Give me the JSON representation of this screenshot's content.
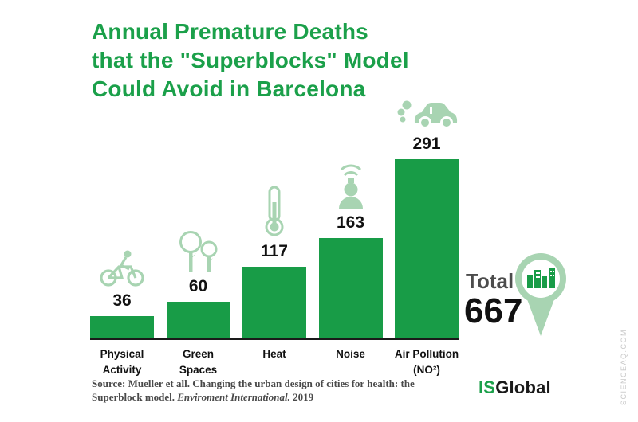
{
  "title": {
    "lines": [
      "Annual Premature Deaths",
      "that the \"Superblocks\" Model",
      "Could Avoid in Barcelona"
    ]
  },
  "chart_data": {
    "type": "bar",
    "title": "Annual Premature Deaths that the \"Superblocks\" Model Could Avoid in Barcelona",
    "categories": [
      "Physical Activity",
      "Green\nSpaces",
      "Heat",
      "Noise",
      "Air Pollution\n(NO²)"
    ],
    "values": [
      36,
      60,
      117,
      163,
      291
    ],
    "icons": [
      "cyclist-icon",
      "trees-icon",
      "thermometer-icon",
      "noise-person-icon",
      "car-exhaust-icon"
    ],
    "xlabel": "",
    "ylabel": "",
    "ylim": [
      0,
      291
    ],
    "grid": false,
    "legend": "none"
  },
  "total": {
    "label": "Total",
    "value": "667"
  },
  "source": {
    "line1": "Source: Mueller et all. Changing the urban design of cities for health: the",
    "line2_prefix": "Superblock model. ",
    "line2_italic": "Enviroment International.",
    "line2_suffix": " 2019"
  },
  "logo": {
    "is": "IS",
    "global": "Global"
  },
  "watermark": "SCIENCEAQ.COM",
  "colors": {
    "bar_green": "#189c47",
    "title_green": "#1ba04a",
    "icon_light_green": "#a8d4b2",
    "text_dark": "#111111",
    "source_gray": "#4a4a4a"
  }
}
